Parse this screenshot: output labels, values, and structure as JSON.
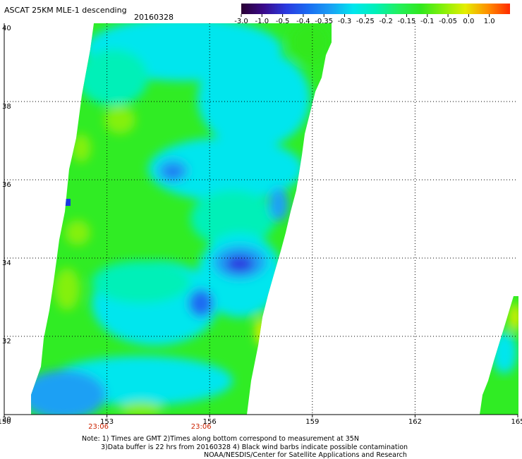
{
  "title": "ASCAT 25KM MLE-1 descending",
  "date": "20160328",
  "colorbar": {
    "labels": [
      "-3.0",
      "-1.0",
      "-0.5",
      "-0.4",
      "-0.35",
      "-0.3",
      "-0.25",
      "-0.2",
      "-0.15",
      "-0.1",
      "-0.05",
      "0.0",
      "1.0"
    ],
    "colors": [
      "#2a0033",
      "#3a0a8a",
      "#2a3ae0",
      "#1a6cf2",
      "#1aa0f4",
      "#00e6ee",
      "#00f0b8",
      "#22f060",
      "#30e81e",
      "#84f00a",
      "#e4ee00",
      "#ff9000",
      "#ff2a00"
    ]
  },
  "map": {
    "lon_labels": [
      "150",
      "153",
      "156",
      "159",
      "162",
      "165"
    ],
    "lat_labels": [
      "40",
      "38",
      "36",
      "34",
      "32",
      "30"
    ],
    "lon_range": [
      150,
      165
    ],
    "lat_range": [
      30,
      40
    ],
    "times": [
      {
        "label": "23:06",
        "lon": 153
      },
      {
        "label": "23:06",
        "lon": 156
      }
    ]
  },
  "notes": {
    "line1": "Note: 1) Times are GMT 2)Times along bottom correspond to measurement at 35N",
    "line2": "3)Data buffer is 22 hrs from 20160328 4) Black wind barbs indicate possible contamination",
    "line3": "NOAA/NESDIS/Center for Satellite Applications and Research"
  },
  "colors": {
    "time_label": "#cc2200"
  }
}
